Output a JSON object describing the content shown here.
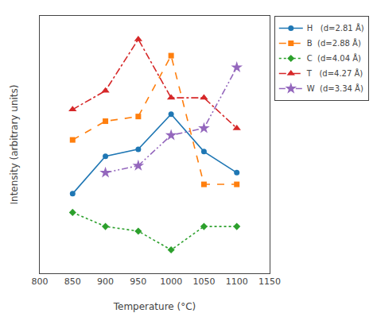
{
  "chart_data": {
    "type": "line",
    "x": [
      850,
      900,
      950,
      1000,
      1050,
      1100
    ],
    "series": [
      {
        "name": "H   (d=2.81 Å)",
        "values": [
          0.34,
          0.5,
          0.53,
          0.68,
          0.52,
          0.43
        ],
        "marker": "circle",
        "line_style": "solid"
      },
      {
        "name": "B  (d=2.88 Å)",
        "values": [
          0.57,
          0.65,
          0.67,
          0.93,
          0.38,
          0.38
        ],
        "marker": "square",
        "line_style": "dashed"
      },
      {
        "name": "C  (d=4.04 Å)",
        "values": [
          0.26,
          0.2,
          0.18,
          0.1,
          0.2,
          0.2
        ],
        "marker": "diamond",
        "line_style": "dotted"
      },
      {
        "name": "T   (d=4.27 Å)",
        "values": [
          0.7,
          0.78,
          1.0,
          0.75,
          0.75,
          0.62
        ],
        "marker": "triangle",
        "line_style": "dashdot"
      },
      {
        "name": "W  (d=3.34 Å)",
        "values": [
          null,
          0.43,
          0.46,
          0.59,
          0.62,
          0.88
        ],
        "marker": "star",
        "line_style": "dashdotdot"
      }
    ],
    "xlabel": "Temperature (°C)",
    "ylabel": "Intensity (arbitrary units)",
    "xlim": [
      800,
      1150
    ],
    "xticks": [
      800,
      850,
      900,
      950,
      1000,
      1050,
      1100,
      1150
    ],
    "ylim": [
      0,
      1.1
    ],
    "tick_labels": "x",
    "grid": false,
    "legend": "upper right"
  }
}
